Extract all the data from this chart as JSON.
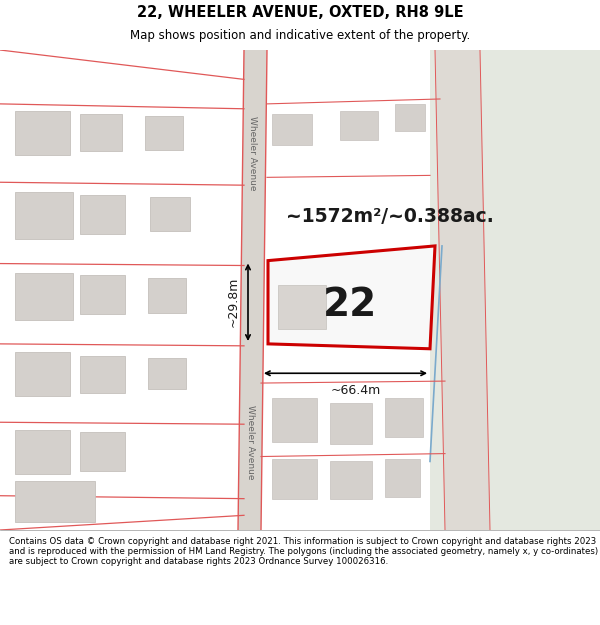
{
  "title": "22, WHEELER AVENUE, OXTED, RH8 9LE",
  "subtitle": "Map shows position and indicative extent of the property.",
  "footer": "Contains OS data © Crown copyright and database right 2021. This information is subject to Crown copyright and database rights 2023 and is reproduced with the permission of HM Land Registry. The polygons (including the associated geometry, namely x, y co-ordinates) are subject to Crown copyright and database rights 2023 Ordnance Survey 100026316.",
  "area_text": "~1572m²/~0.388ac.",
  "number_text": "22",
  "dim_width": "~66.4m",
  "dim_height": "~29.8m",
  "street_label": "Wheeler Avenue",
  "map_bg": "#ece9e4",
  "road_fill": "#dedad4",
  "right_bg": "#e8e8e4",
  "building_fill": "#d4d0cc",
  "building_edge": "#c4c0bc",
  "red_line": "#e05858",
  "property_edge": "#cc0000",
  "property_fill": "#f8f8f8",
  "blue_line": "#7aaacc",
  "footer_bg": "#ffffff",
  "title_bg": "#ffffff"
}
